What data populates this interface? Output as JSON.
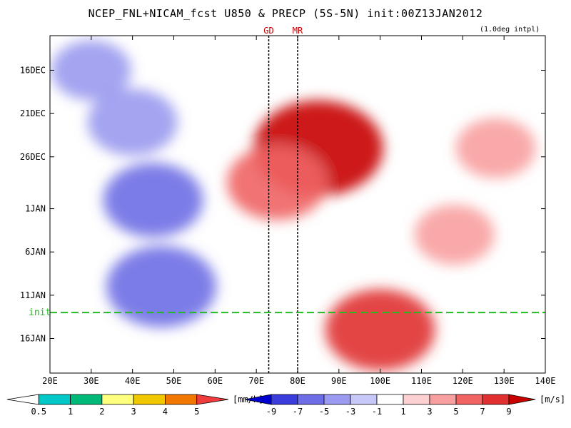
{
  "title": "NCEP_FNL+NICAM_fcst U850 & PRECP (5S-5N) init:00Z13JAN2012",
  "subtitle": "(1.0deg intpl)",
  "chart_data": {
    "type": "heatmap",
    "title": "NCEP_FNL+NICAM_fcst U850 & PRECP (5S-5N) init:00Z13JAN2012",
    "subtitle": "(1.0deg intpl)",
    "x_ticks": [
      "20E",
      "30E",
      "40E",
      "50E",
      "60E",
      "70E",
      "80E",
      "90E",
      "100E",
      "110E",
      "120E",
      "130E",
      "140E"
    ],
    "x_tick_values": [
      20,
      30,
      40,
      50,
      60,
      70,
      80,
      90,
      100,
      110,
      120,
      130,
      140
    ],
    "xlim": [
      20,
      140
    ],
    "y_ticks": [
      "16DEC",
      "21DEC",
      "26DEC",
      "1JAN",
      "6JAN",
      "11JAN",
      "16JAN"
    ],
    "y_tick_dates": [
      "2011-12-16",
      "2011-12-21",
      "2011-12-26",
      "2012-01-01",
      "2012-01-06",
      "2012-01-11",
      "2012-01-16"
    ],
    "ylim": [
      "2011-12-12",
      "2012-01-20"
    ],
    "markers": [
      {
        "label": "GD",
        "lon": 73
      },
      {
        "label": "MR",
        "lon": 80
      }
    ],
    "init_line": {
      "label": "init",
      "date": "2012-01-13",
      "color": "#22bb22"
    },
    "u850_anomaly_regions": [
      {
        "lon_center": 40,
        "date_center": "2011-12-22",
        "value": -5
      },
      {
        "lon_center": 45,
        "date_center": "2011-12-31",
        "value": -6
      },
      {
        "lon_center": 47,
        "date_center": "2012-01-10",
        "value": -7
      },
      {
        "lon_center": 30,
        "date_center": "2011-12-16",
        "value": -4
      },
      {
        "lon_center": 85,
        "date_center": "2011-12-25",
        "value": 9
      },
      {
        "lon_center": 75,
        "date_center": "2011-12-29",
        "value": 6
      },
      {
        "lon_center": 100,
        "date_center": "2012-01-15",
        "value": 7
      },
      {
        "lon_center": 118,
        "date_center": "2012-01-04",
        "value": 4
      },
      {
        "lon_center": 128,
        "date_center": "2011-12-25",
        "value": 4
      },
      {
        "lon_center": 95,
        "date_center": "2012-01-04",
        "value": -1
      }
    ],
    "precip_colorbar": {
      "unit": "[mm/h]",
      "levels": [
        "0.5",
        "1",
        "2",
        "3",
        "4",
        "5"
      ],
      "colors": [
        "#ffffff",
        "#00c8c8",
        "#00b878",
        "#ffff80",
        "#f0c800",
        "#f07800",
        "#f03c3c"
      ]
    },
    "u850_colorbar": {
      "unit": "[m/s]",
      "levels": [
        "-9",
        "-7",
        "-5",
        "-3",
        "-1",
        "1",
        "3",
        "5",
        "7",
        "9"
      ],
      "colors": [
        "#0000d0",
        "#3c3cdc",
        "#6e6ee6",
        "#9a9af0",
        "#c8c8f8",
        "#ffffff",
        "#fcd0d0",
        "#f8a0a0",
        "#f06464",
        "#e03030",
        "#c80000"
      ]
    }
  }
}
